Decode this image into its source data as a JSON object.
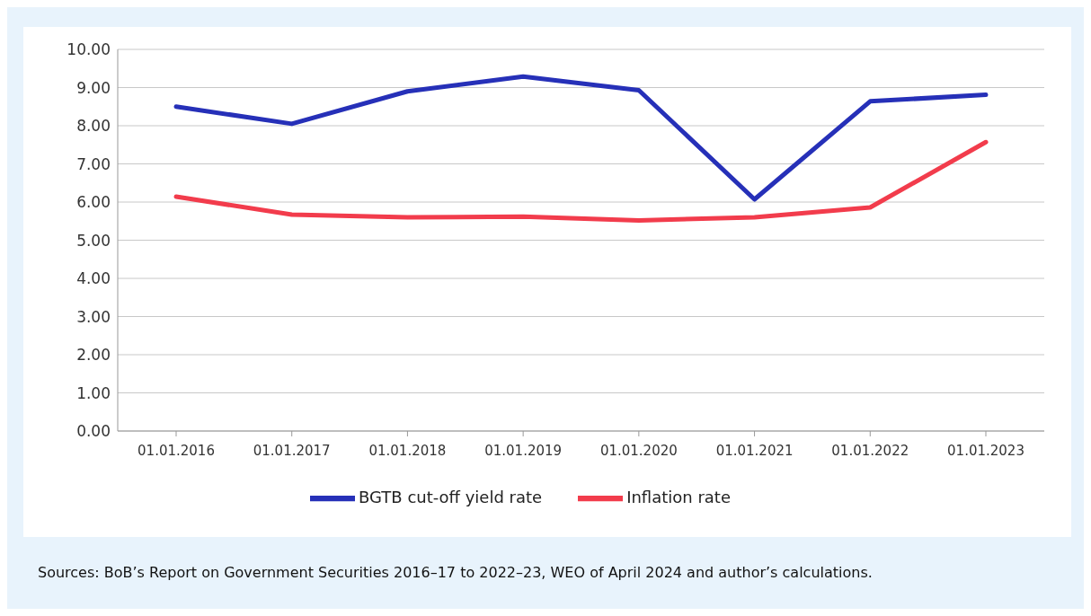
{
  "chart_data": {
    "type": "line",
    "categories": [
      "01.01.2016",
      "01.01.2017",
      "01.01.2018",
      "01.01.2019",
      "01.01.2020",
      "01.01.2021",
      "01.01.2022",
      "01.01.2023"
    ],
    "series": [
      {
        "name": "BGTB cut-off yield rate",
        "color": "#2630b8",
        "values": [
          8.5,
          8.05,
          8.9,
          9.29,
          8.93,
          6.07,
          8.64,
          8.81
        ]
      },
      {
        "name": "Inflation rate",
        "color": "#f23c4c",
        "values": [
          6.14,
          5.67,
          5.6,
          5.62,
          5.52,
          5.6,
          5.86,
          7.57
        ]
      }
    ],
    "ylim": [
      0,
      10
    ],
    "yticks": [
      {
        "value": 0,
        "label": "0.00"
      },
      {
        "value": 1,
        "label": "1.00"
      },
      {
        "value": 2,
        "label": "2.00"
      },
      {
        "value": 3,
        "label": "3.00"
      },
      {
        "value": 4,
        "label": "4.00"
      },
      {
        "value": 5,
        "label": "5.00"
      },
      {
        "value": 6,
        "label": "6.00"
      },
      {
        "value": 7,
        "label": "7.00"
      },
      {
        "value": 8,
        "label": "8.00"
      },
      {
        "value": 9,
        "label": "9.00"
      },
      {
        "value": 10,
        "label": "10.00"
      }
    ],
    "grid": "y",
    "legend": "bottom",
    "marker": "none",
    "line_style": "solid",
    "annotations": [
      "Sources: BoB’s Report on Government Securities 2016–17 to 2022–23, WEO of April 2024 and author’s calculations."
    ]
  }
}
